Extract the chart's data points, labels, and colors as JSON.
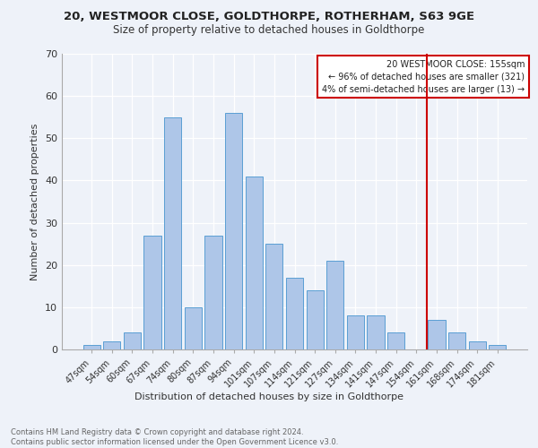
{
  "title1": "20, WESTMOOR CLOSE, GOLDTHORPE, ROTHERHAM, S63 9GE",
  "title2": "Size of property relative to detached houses in Goldthorpe",
  "xlabel": "Distribution of detached houses by size in Goldthorpe",
  "ylabel": "Number of detached properties",
  "categories": [
    "47sqm",
    "54sqm",
    "60sqm",
    "67sqm",
    "74sqm",
    "80sqm",
    "87sqm",
    "94sqm",
    "101sqm",
    "107sqm",
    "114sqm",
    "121sqm",
    "127sqm",
    "134sqm",
    "141sqm",
    "147sqm",
    "154sqm",
    "161sqm",
    "168sqm",
    "174sqm",
    "181sqm"
  ],
  "values": [
    1,
    2,
    4,
    27,
    55,
    10,
    27,
    56,
    41,
    25,
    17,
    14,
    21,
    8,
    8,
    4,
    0,
    7,
    4,
    2,
    1
  ],
  "bar_color": "#aec6e8",
  "bar_edge_color": "#5a9fd4",
  "annotation_title": "20 WESTMOOR CLOSE: 155sqm",
  "annotation_line1": "← 96% of detached houses are smaller (321)",
  "annotation_line2": "4% of semi-detached houses are larger (13) →",
  "annotation_box_color": "#ffffff",
  "annotation_box_edge_color": "#cc0000",
  "vline_color": "#cc0000",
  "ylim": [
    0,
    70
  ],
  "yticks": [
    0,
    10,
    20,
    30,
    40,
    50,
    60,
    70
  ],
  "footer": "Contains HM Land Registry data © Crown copyright and database right 2024.\nContains public sector information licensed under the Open Government Licence v3.0.",
  "bg_color": "#eef2f9",
  "grid_color": "#ffffff",
  "title1_fontsize": 9.5,
  "title2_fontsize": 8.5,
  "ylabel_fontsize": 8,
  "xlabel_fontsize": 8,
  "tick_fontsize": 7,
  "footer_fontsize": 6,
  "vline_x_idx": 16.5
}
